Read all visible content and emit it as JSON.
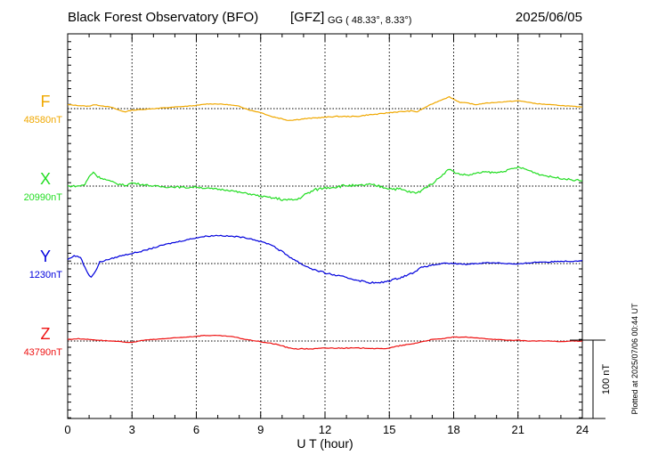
{
  "chart_data": {
    "type": "line",
    "title": "Black Forest Observatory (BFO)",
    "agency": "[GFZ]",
    "coords": "GG ( 48.33°,   8.33°)",
    "date": "2025/06/05",
    "xlabel": "U T (hour)",
    "xlim": [
      0,
      24
    ],
    "xticks": [
      "0",
      "3",
      "6",
      "9",
      "12",
      "15",
      "18",
      "21",
      "24"
    ],
    "plotted_note": "Plotted at 2025/07/06 00:44 UT",
    "scale_label": "100 nT",
    "scale_nT": 100,
    "ylim_nT": [
      -210,
      180
    ],
    "series": [
      {
        "name": "F",
        "baseline": "48580nT",
        "color": "#f0a800",
        "offset_nT": 0,
        "x": [
          0,
          0.5,
          1,
          1.2,
          1.5,
          2,
          2.5,
          2.7,
          3,
          3.5,
          4,
          4.5,
          5,
          5.5,
          6,
          6.5,
          7,
          7.5,
          8,
          8.5,
          9,
          9.5,
          10,
          10.3,
          10.7,
          11,
          11.5,
          12,
          12.5,
          13,
          13.5,
          14,
          14.5,
          15,
          15.5,
          16,
          16.3,
          16.7,
          17,
          17.5,
          17.8,
          18,
          18.3,
          18.7,
          19,
          19.5,
          20,
          20.5,
          21,
          21.3,
          21.7,
          22,
          22.5,
          23,
          23.5,
          24
        ],
        "y": [
          5,
          4,
          3,
          5,
          4,
          2,
          -3,
          -4,
          -2,
          -1,
          0,
          1,
          2,
          3,
          4,
          6,
          6,
          5,
          3,
          -2,
          -5,
          -10,
          -13,
          -15,
          -14,
          -13,
          -12,
          -11,
          -10,
          -10,
          -10,
          -8,
          -7,
          -5,
          -4,
          -3,
          -4,
          2,
          6,
          12,
          15,
          12,
          8,
          7,
          5,
          7,
          8,
          9,
          10,
          9,
          7,
          6,
          5,
          4,
          3,
          2
        ]
      },
      {
        "name": "X",
        "baseline": "20990nT",
        "color": "#22dd22",
        "offset_nT": 0,
        "x": [
          0,
          0.5,
          0.8,
          1,
          1.2,
          1.4,
          1.8,
          2.3,
          2.7,
          3,
          3.5,
          4,
          4.5,
          5,
          5.5,
          6,
          6.5,
          7,
          7.5,
          8,
          8.5,
          9,
          9.5,
          10,
          10.3,
          10.7,
          11,
          11.5,
          12,
          12.5,
          13,
          13.5,
          14,
          14.5,
          15,
          15.5,
          16,
          16.3,
          16.5,
          17,
          17.5,
          17.8,
          18,
          18.3,
          18.7,
          19,
          19.5,
          20,
          20.5,
          21,
          21.3,
          21.7,
          22,
          22.5,
          23,
          23.5,
          24
        ],
        "y": [
          0,
          0,
          2,
          12,
          18,
          12,
          8,
          3,
          1,
          4,
          2,
          0,
          -1,
          -1,
          -2,
          -1,
          -3,
          -4,
          -5,
          -8,
          -10,
          -13,
          -15,
          -17,
          -18,
          -17,
          -12,
          -5,
          -2,
          -1,
          1,
          0,
          2,
          0,
          -3,
          -4,
          -8,
          -9,
          -5,
          3,
          15,
          22,
          18,
          15,
          14,
          16,
          18,
          17,
          20,
          24,
          22,
          18,
          15,
          12,
          10,
          8,
          7
        ]
      },
      {
        "name": "Y",
        "baseline": "1230nT",
        "color": "#0000dd",
        "offset_nT": 0,
        "x": [
          0,
          0.3,
          0.6,
          0.8,
          1,
          1.1,
          1.3,
          1.5,
          2,
          2.5,
          3,
          3.5,
          4,
          4.5,
          5,
          5.5,
          6,
          6.5,
          7,
          7.5,
          8,
          8.5,
          9,
          9.5,
          10,
          10.5,
          11,
          11.5,
          12,
          12.5,
          13,
          13.5,
          14,
          14.5,
          15,
          15.5,
          16,
          16.5,
          17,
          17.5,
          18,
          18.5,
          19,
          19.5,
          20,
          20.5,
          21,
          21.5,
          22,
          22.5,
          23,
          23.5,
          24
        ],
        "y": [
          5,
          10,
          8,
          -5,
          -15,
          -17,
          -10,
          2,
          6,
          10,
          13,
          16,
          20,
          24,
          27,
          30,
          33,
          35,
          36,
          35,
          34,
          32,
          28,
          24,
          15,
          6,
          -2,
          -8,
          -12,
          -15,
          -18,
          -21,
          -24,
          -25,
          -22,
          -18,
          -13,
          -5,
          -2,
          0,
          0,
          -1,
          0,
          1,
          1,
          0,
          -1,
          1,
          2,
          2,
          3,
          3,
          4
        ]
      },
      {
        "name": "Z",
        "baseline": "43790nT",
        "color": "#ee1111",
        "offset_nT": 0,
        "x": [
          0,
          0.5,
          1,
          1.5,
          2,
          2.5,
          3,
          3.5,
          4,
          4.5,
          5,
          5.5,
          6,
          6.3,
          7,
          7.5,
          7.8,
          8.3,
          8.8,
          9,
          9.5,
          10,
          10.3,
          10.7,
          11,
          11.5,
          12,
          12.5,
          13,
          13.5,
          14,
          14.5,
          15,
          15.5,
          16,
          16.5,
          17,
          17.5,
          18,
          18.5,
          19,
          19.5,
          20,
          20.5,
          21,
          21.5,
          22,
          22.5,
          23,
          23.5,
          24
        ],
        "y": [
          2,
          3,
          2,
          1,
          0,
          -1,
          -2,
          1,
          2,
          3,
          4,
          5,
          6,
          7,
          7,
          6,
          5,
          2,
          0,
          -1,
          -3,
          -6,
          -9,
          -10,
          -10,
          -10,
          -9,
          -9,
          -9,
          -9,
          -9,
          -10,
          -9,
          -6,
          -4,
          -1,
          2,
          3,
          5,
          5,
          4,
          3,
          2,
          1,
          1,
          0,
          0,
          0,
          -1,
          0,
          0
        ]
      }
    ]
  }
}
